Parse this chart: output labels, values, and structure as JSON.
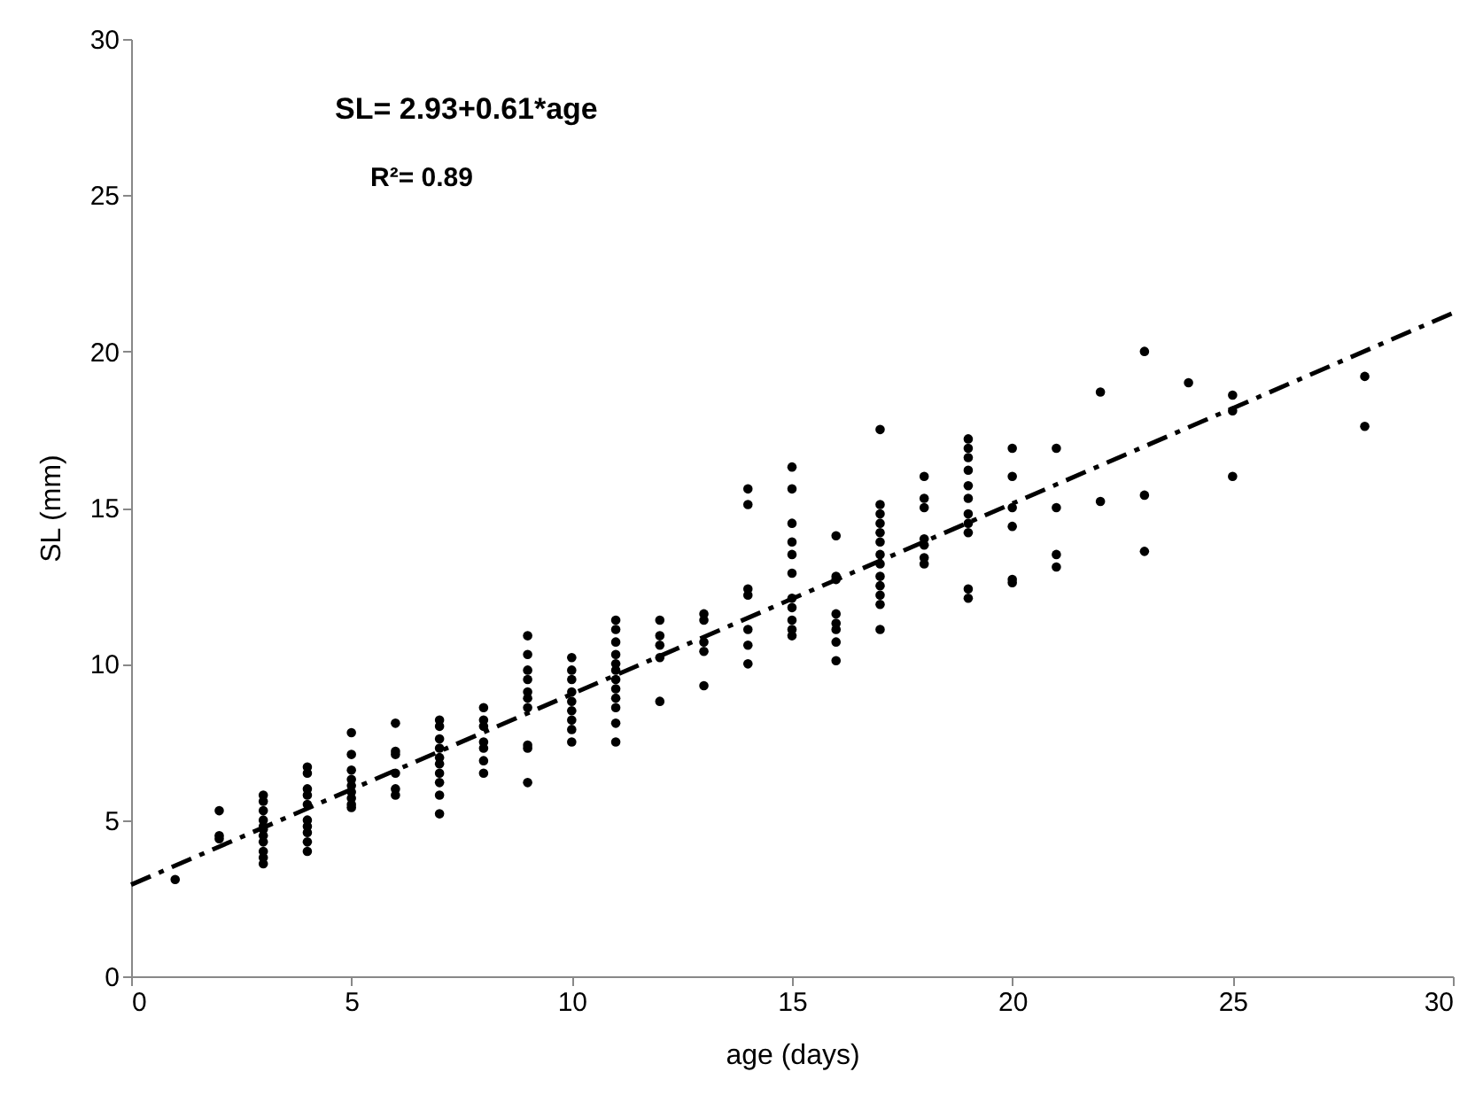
{
  "chart_data": {
    "type": "scatter",
    "xlabel": "age (days)",
    "ylabel": "SL (mm)",
    "xlim": [
      0,
      30
    ],
    "ylim": [
      0,
      30
    ],
    "xticks": [
      0,
      5,
      10,
      15,
      20,
      25,
      30
    ],
    "yticks": [
      0,
      5,
      10,
      15,
      20,
      25,
      30
    ],
    "grid": false,
    "annotations": [
      "SL= 2.93+0.61*age",
      "R²= 0.89"
    ],
    "series": [
      {
        "color": "#000000",
        "marker": "circle",
        "x": [
          1,
          2,
          2,
          2,
          3,
          3,
          3,
          3,
          3,
          3,
          3,
          3,
          3,
          3,
          3,
          4,
          4,
          4,
          4,
          4,
          4,
          4,
          4,
          4,
          4,
          5,
          5,
          5,
          5,
          5,
          5,
          5,
          5,
          5,
          6,
          6,
          6,
          6,
          6,
          6,
          7,
          7,
          7,
          7,
          7,
          7,
          7,
          7,
          7,
          7,
          8,
          8,
          8,
          8,
          8,
          8,
          8,
          9,
          9,
          9,
          9,
          9,
          9,
          9,
          9,
          9,
          9,
          10,
          10,
          10,
          10,
          10,
          10,
          10,
          10,
          10,
          11,
          11,
          11,
          11,
          11,
          11,
          11,
          11,
          11,
          11,
          11,
          11,
          12,
          12,
          12,
          12,
          12,
          13,
          13,
          13,
          13,
          13,
          14,
          14,
          14,
          14,
          14,
          14,
          14,
          15,
          15,
          15,
          15,
          15,
          15,
          15,
          15,
          15,
          15,
          15,
          16,
          16,
          16,
          16,
          16,
          16,
          16,
          16,
          17,
          17,
          17,
          17,
          17,
          17,
          17,
          17,
          17,
          17,
          17,
          17,
          17,
          18,
          18,
          18,
          18,
          18,
          18,
          18,
          19,
          19,
          19,
          19,
          19,
          19,
          19,
          19,
          19,
          19,
          19,
          20,
          20,
          20,
          20,
          20,
          20,
          21,
          21,
          21,
          21,
          22,
          22,
          23,
          23,
          23,
          24,
          25,
          25,
          25,
          28,
          28
        ],
        "values": [
          3.1,
          5.3,
          4.4,
          4.5,
          5.8,
          5.6,
          5.3,
          5.0,
          4.8,
          4.7,
          4.5,
          4.3,
          4.0,
          3.8,
          3.6,
          6.7,
          6.5,
          6.0,
          5.8,
          5.5,
          5.0,
          4.8,
          4.6,
          4.3,
          4.0,
          7.8,
          7.1,
          6.6,
          6.3,
          6.1,
          5.9,
          5.7,
          5.5,
          5.4,
          8.1,
          7.2,
          7.1,
          6.5,
          6.0,
          5.8,
          8.2,
          8.0,
          7.6,
          7.3,
          7.0,
          6.8,
          6.5,
          6.2,
          5.8,
          5.2,
          8.6,
          8.2,
          8.0,
          7.5,
          7.3,
          6.9,
          6.5,
          10.9,
          10.3,
          9.8,
          9.5,
          9.1,
          8.9,
          8.6,
          7.4,
          7.3,
          6.2,
          10.2,
          9.8,
          9.5,
          9.1,
          8.8,
          8.5,
          8.2,
          7.9,
          7.5,
          11.4,
          11.1,
          10.7,
          10.3,
          10.0,
          9.8,
          9.5,
          9.2,
          8.9,
          8.6,
          8.1,
          7.5,
          11.4,
          10.9,
          10.6,
          10.2,
          8.8,
          11.6,
          11.4,
          10.7,
          10.4,
          9.3,
          15.6,
          15.1,
          12.4,
          12.2,
          11.1,
          10.6,
          10.0,
          16.3,
          15.6,
          14.5,
          13.9,
          13.5,
          12.9,
          12.1,
          11.8,
          11.4,
          11.1,
          10.9,
          14.1,
          12.8,
          12.7,
          11.6,
          11.3,
          11.1,
          10.7,
          10.1,
          17.5,
          15.1,
          14.8,
          14.5,
          14.2,
          13.9,
          13.5,
          13.2,
          12.8,
          12.5,
          12.2,
          11.9,
          11.1,
          16.0,
          15.3,
          15.0,
          14.0,
          13.8,
          13.4,
          13.2,
          17.2,
          16.9,
          16.6,
          16.2,
          15.7,
          15.3,
          14.8,
          14.5,
          14.2,
          12.4,
          12.1,
          16.9,
          16.0,
          15.0,
          14.4,
          12.7,
          12.6,
          16.9,
          15.0,
          13.5,
          13.1,
          18.7,
          15.2,
          20.0,
          15.4,
          13.6,
          19.0,
          18.6,
          18.1,
          16.0,
          19.2,
          17.6
        ]
      },
      {
        "type": "line",
        "color": "#000000",
        "line_style": "dashed",
        "marker": "none",
        "x": [
          0,
          30
        ],
        "values": [
          2.93,
          21.23
        ]
      }
    ]
  }
}
